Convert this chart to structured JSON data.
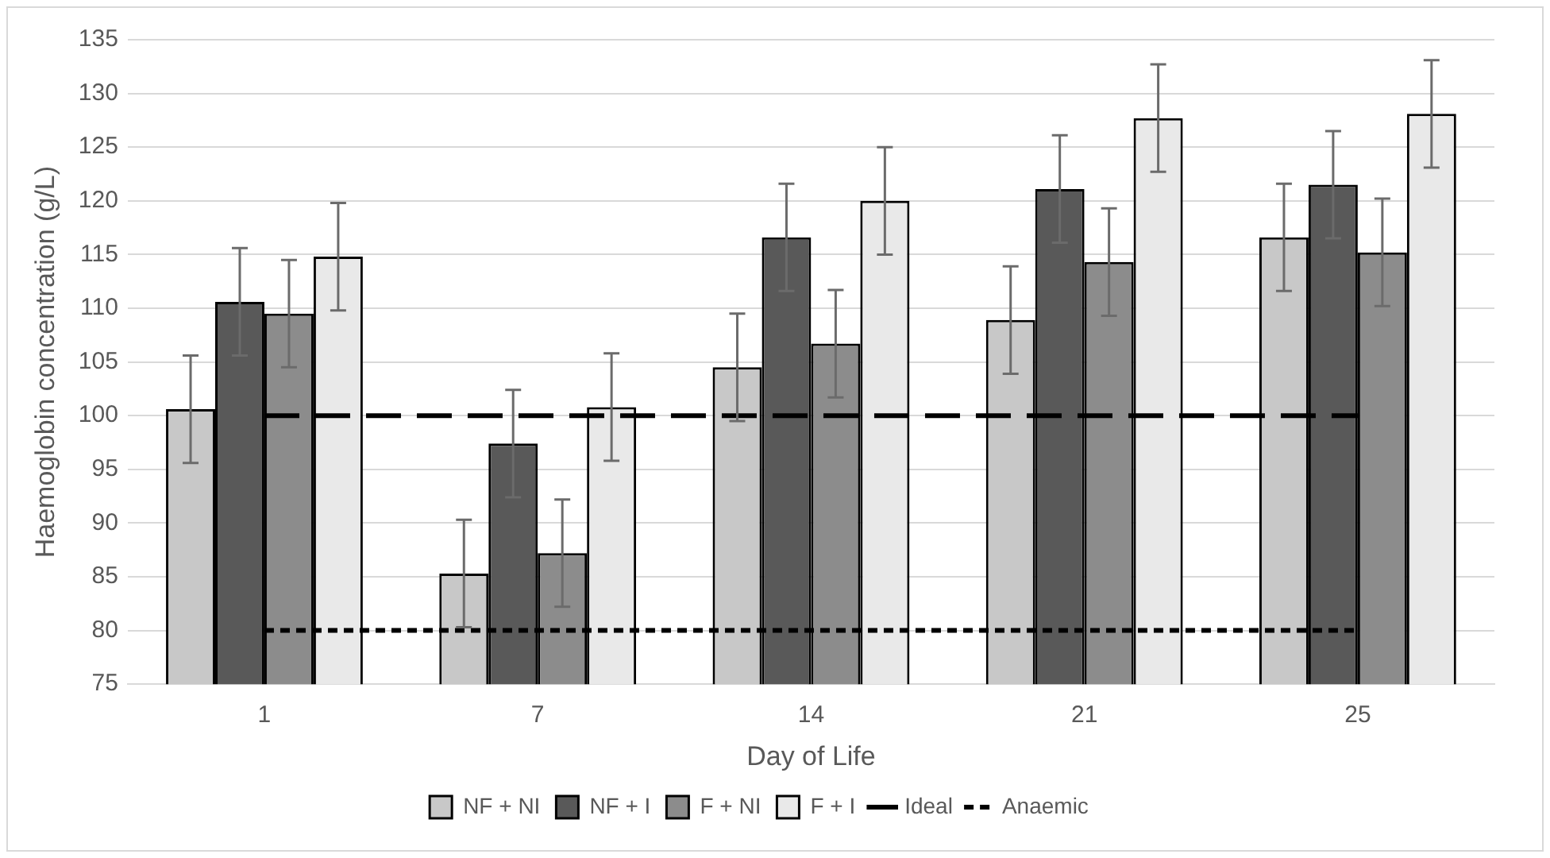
{
  "chart_data": {
    "type": "bar",
    "xlabel": "Day of Life",
    "ylabel": "Haemoglobin concentration (g/L)",
    "categories": [
      "1",
      "7",
      "14",
      "21",
      "25"
    ],
    "series": [
      {
        "name": "NF + NI",
        "color": "#c8c8c8",
        "values": [
          100.6,
          85.3,
          104.5,
          108.9,
          116.6
        ],
        "errors": [
          5,
          5,
          5,
          5,
          5
        ]
      },
      {
        "name": "NF + I",
        "color": "#595959",
        "values": [
          110.6,
          97.4,
          116.6,
          121.1,
          121.5
        ],
        "errors": [
          5,
          5,
          5,
          5,
          5
        ]
      },
      {
        "name": "F + NI",
        "color": "#8c8c8c",
        "values": [
          109.5,
          87.2,
          106.7,
          114.3,
          115.2
        ],
        "errors": [
          5,
          5,
          5,
          5,
          5
        ]
      },
      {
        "name": "F + I",
        "color": "#e9e9e9",
        "values": [
          114.8,
          100.8,
          120.0,
          127.7,
          128.1
        ],
        "errors": [
          5,
          5,
          5,
          5,
          5
        ]
      }
    ],
    "ref_lines": [
      {
        "axis": "y",
        "value": 100,
        "label": "Ideal",
        "color": "#000000",
        "line_style": "dashed"
      },
      {
        "axis": "y",
        "value": 80,
        "label": "Anaemic",
        "color": "#000000",
        "line_style": "dotted"
      }
    ],
    "ylim": [
      75,
      135
    ],
    "yticks": [
      75,
      80,
      85,
      90,
      95,
      100,
      105,
      110,
      115,
      120,
      125,
      130,
      135
    ],
    "grid": "y",
    "legend": "bottom"
  }
}
